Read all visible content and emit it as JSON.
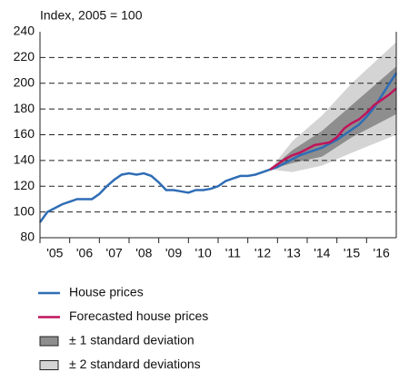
{
  "chart_data": {
    "type": "line",
    "subtitle": "Index, 2005 = 100",
    "xlim": [
      2005,
      2017
    ],
    "xticks": [
      {
        "value": 2005.5,
        "label": "'05"
      },
      {
        "value": 2006.5,
        "label": "'06"
      },
      {
        "value": 2007.5,
        "label": "'07"
      },
      {
        "value": 2008.5,
        "label": "'08"
      },
      {
        "value": 2009.5,
        "label": "'09"
      },
      {
        "value": 2010.5,
        "label": "'10"
      },
      {
        "value": 2011.5,
        "label": "'11"
      },
      {
        "value": 2012.5,
        "label": "'12"
      },
      {
        "value": 2013.5,
        "label": "'13"
      },
      {
        "value": 2014.5,
        "label": "'14"
      },
      {
        "value": 2015.5,
        "label": "'15"
      },
      {
        "value": 2016.5,
        "label": "'16"
      }
    ],
    "ylim": [
      80,
      240
    ],
    "yticks": [
      80,
      100,
      120,
      140,
      160,
      180,
      200,
      220,
      240
    ],
    "grid": true,
    "bands": [
      {
        "name": "± 2 standard deviations",
        "color": "#d4d4d4",
        "x": [
          2012.75,
          2013.5,
          2014.5,
          2015.5,
          2017
        ],
        "lower": [
          133,
          131,
          136,
          146,
          160
        ],
        "upper": [
          133,
          155,
          175,
          200,
          232
        ]
      },
      {
        "name": "± 1 standard deviation",
        "color": "#8e8e8e",
        "x": [
          2012.75,
          2013.5,
          2014.5,
          2015.5,
          2017
        ],
        "lower": [
          133,
          138,
          143,
          158,
          176
        ],
        "upper": [
          133,
          148,
          163,
          183,
          213
        ]
      }
    ],
    "series": [
      {
        "name": "House prices",
        "color": "#2f6db5",
        "x": [
          2005,
          2005.25,
          2005.5,
          2005.75,
          2006,
          2006.25,
          2006.5,
          2006.75,
          2007,
          2007.25,
          2007.5,
          2007.75,
          2008,
          2008.25,
          2008.5,
          2008.75,
          2009,
          2009.25,
          2009.5,
          2009.75,
          2010,
          2010.25,
          2010.5,
          2010.75,
          2011,
          2011.25,
          2011.5,
          2011.75,
          2012,
          2012.25,
          2012.5,
          2012.75,
          2013,
          2013.25,
          2013.5,
          2013.75,
          2014,
          2014.25,
          2014.5,
          2014.75,
          2015,
          2015.25,
          2015.5,
          2015.75,
          2016,
          2016.25,
          2016.5,
          2016.75,
          2017
        ],
        "values": [
          92,
          100,
          103,
          106,
          108,
          110,
          110,
          110,
          114,
          120,
          125,
          129,
          130,
          129,
          130,
          128,
          123,
          117,
          117,
          116,
          115,
          117,
          117,
          118,
          120,
          124,
          126,
          128,
          128,
          129,
          131,
          133,
          135,
          138,
          141,
          144,
          146,
          148,
          150,
          153,
          156,
          160,
          164,
          168,
          174,
          181,
          190,
          199,
          208
        ]
      },
      {
        "name": "Forecasted house prices",
        "color": "#c0135a",
        "x": [
          2012.75,
          2013,
          2013.25,
          2013.5,
          2013.75,
          2014,
          2014.25,
          2014.5,
          2014.75,
          2015,
          2015.25,
          2015.5,
          2015.75,
          2016,
          2016.25,
          2016.5,
          2016.75,
          2017
        ],
        "values": [
          133,
          137,
          141,
          144,
          146,
          149,
          152,
          153,
          154,
          158,
          165,
          169,
          172,
          177,
          183,
          187,
          191,
          196
        ]
      }
    ]
  }
}
